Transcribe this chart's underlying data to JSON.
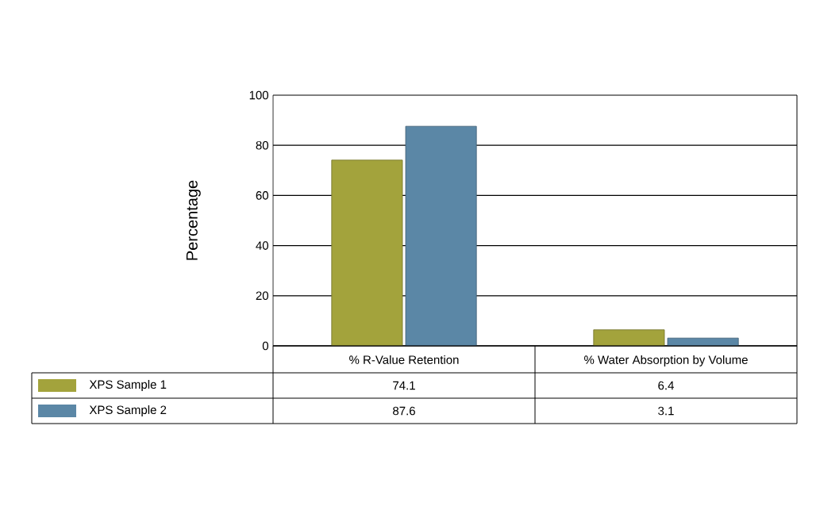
{
  "chart_data": {
    "type": "bar",
    "ylabel": "Percentage",
    "categories": [
      "% R-Value Retention",
      "% Water Absorption by Volume"
    ],
    "series": [
      {
        "name": "XPS Sample 1",
        "color": "#a3a33c",
        "values": [
          74.1,
          6.4
        ]
      },
      {
        "name": "XPS Sample 2",
        "color": "#5b87a6",
        "values": [
          87.6,
          3.1
        ]
      }
    ],
    "ylim": [
      0,
      100
    ],
    "yticks": [
      0,
      20,
      40,
      60,
      80,
      100
    ],
    "grid": "y",
    "legend": "bottom left",
    "data_labels": true
  }
}
